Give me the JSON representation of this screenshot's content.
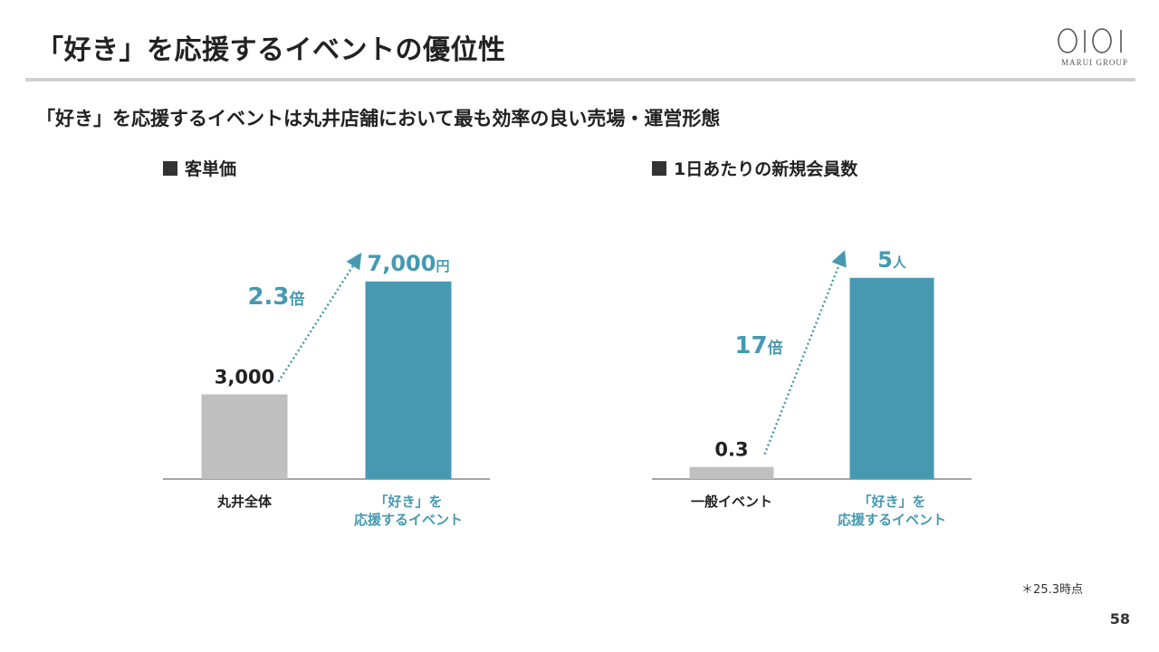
{
  "slide": {
    "title": "「好き」を応援するイベントの優位性",
    "subtitle": "「好き」を応援するイベントは丸井店舗において最も効率の良い売場・運営形態",
    "footnote": "＊25.3時点",
    "page_number": "58",
    "logo_text": "MARUI GROUP"
  },
  "colors": {
    "accent": "#4699b1",
    "gray_bar": "#bfbfbf",
    "text": "#222222",
    "rule": "#d0d0d0"
  },
  "chart_data": [
    {
      "type": "bar",
      "title": "客単価",
      "categories": [
        [
          "丸井全体"
        ],
        [
          "「好き」を",
          "応援するイベント"
        ]
      ],
      "values": [
        3000,
        7000
      ],
      "value_labels": [
        "3,000",
        "7,000"
      ],
      "value_units": [
        "",
        "円"
      ],
      "multiplier_label": "2.3",
      "multiplier_unit": "倍",
      "bar_colors": [
        "#bfbfbf",
        "#4699b1"
      ],
      "label_colors": [
        "#222222",
        "#4699b1"
      ],
      "category_label_colors": [
        "#222222",
        "#4699b1"
      ],
      "ylim": [
        0,
        7700
      ],
      "grid": false,
      "legend": "none"
    },
    {
      "type": "bar",
      "title": "1日あたりの新規会員数",
      "categories": [
        [
          "一般イベント"
        ],
        [
          "「好き」を",
          "応援するイベント"
        ]
      ],
      "values": [
        0.3,
        5
      ],
      "value_labels": [
        "0.3",
        "5"
      ],
      "value_units": [
        "",
        "人"
      ],
      "multiplier_label": "17",
      "multiplier_unit": "倍",
      "bar_colors": [
        "#bfbfbf",
        "#4699b1"
      ],
      "label_colors": [
        "#222222",
        "#4699b1"
      ],
      "category_label_colors": [
        "#222222",
        "#4699b1"
      ],
      "ylim": [
        0,
        5.4
      ],
      "grid": false,
      "legend": "none"
    }
  ]
}
